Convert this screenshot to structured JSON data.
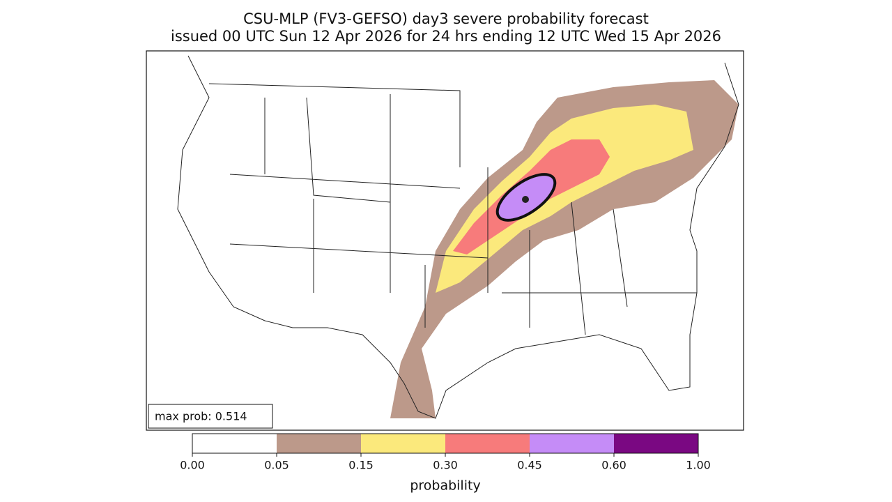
{
  "title": [
    "CSU-MLP (FV3-GEFSO) day3 severe probability forecast",
    "issued 00 UTC Sun 12 Apr 2026 for 24 hrs ending 12 UTC Wed 15 Apr 2026"
  ],
  "annotation": "max prob: 0.514",
  "colorbar": {
    "label": "probability",
    "ticks": [
      {
        "value": 0,
        "label": "0.00"
      },
      {
        "value": 0.05,
        "label": "0.05"
      },
      {
        "value": 0.15,
        "label": "0.15"
      },
      {
        "value": 0.3,
        "label": "0.30"
      },
      {
        "value": 0.45,
        "label": "0.45"
      },
      {
        "value": 0.6,
        "label": "0.60"
      },
      {
        "value": 1,
        "label": "1.00"
      }
    ],
    "colors": [
      "#ffffff",
      "#bc998a",
      "#fbe97c",
      "#f77b7b",
      "#c58cf7",
      "#7a0882"
    ]
  }
}
